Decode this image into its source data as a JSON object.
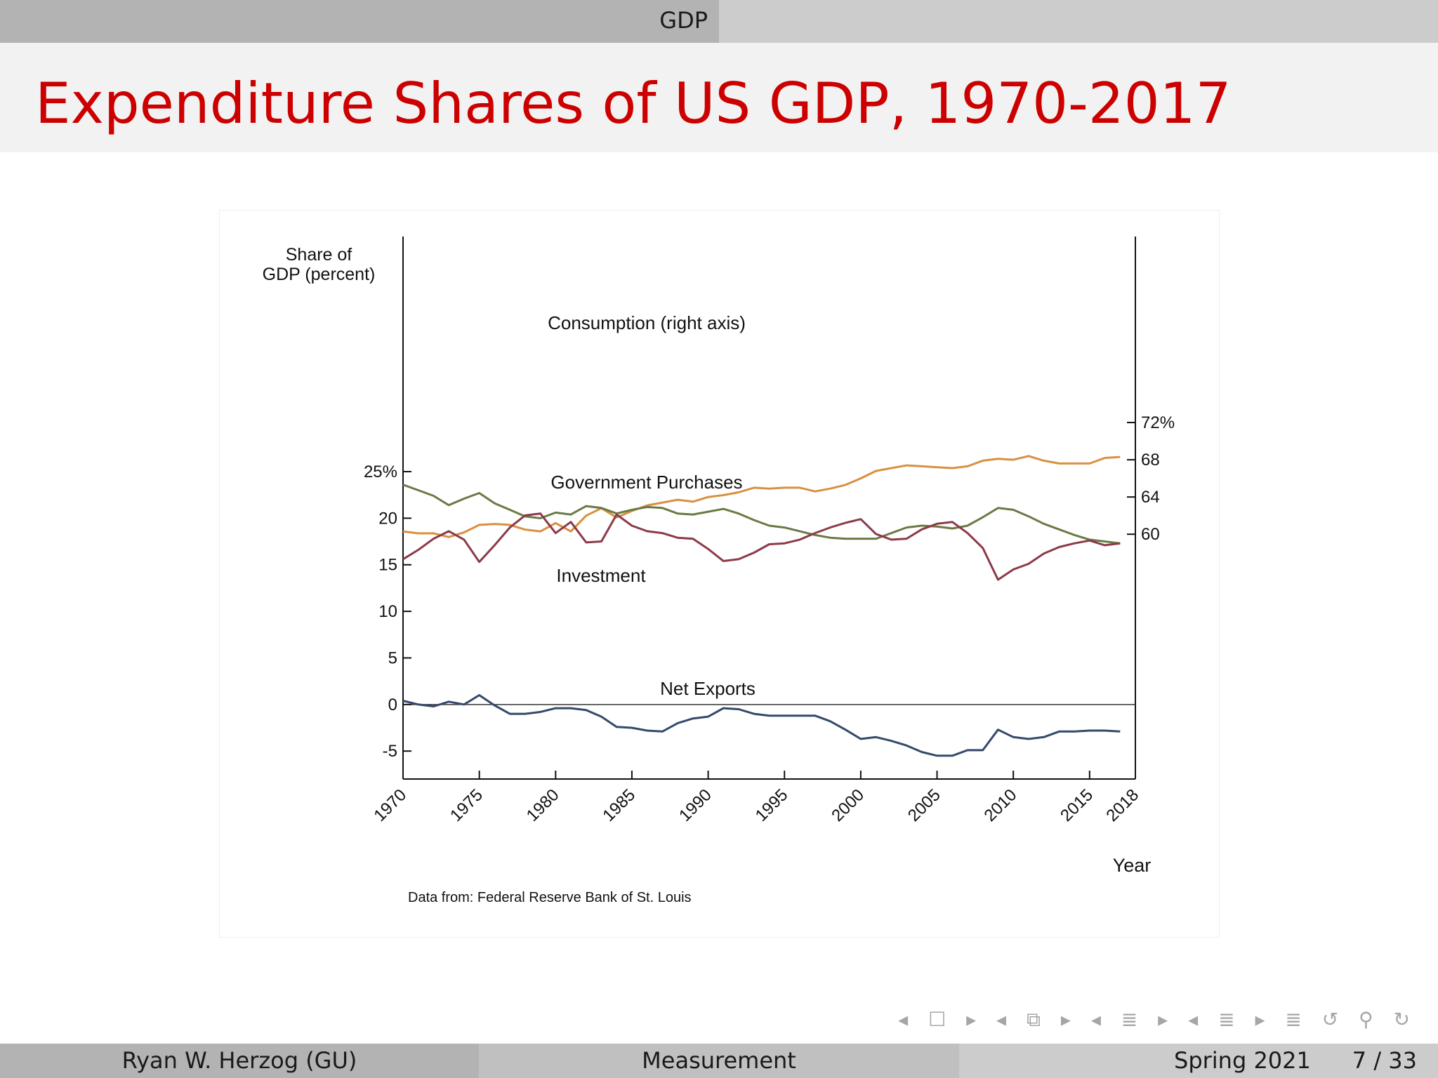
{
  "header": {
    "section": "GDP"
  },
  "slide": {
    "title": "Expenditure Shares of US GDP, 1970-2017"
  },
  "colors": {
    "title": "#cc0000",
    "consumption": "#d99040",
    "government": "#6a7a44",
    "investment": "#8c3a48",
    "net_exports": "#34496b"
  },
  "footer": {
    "author": "Ryan W. Herzog  (GU)",
    "topic": "Measurement",
    "date": "Spring 2021",
    "page": "7 / 33"
  },
  "nav": {
    "symbols": "◂ ☐ ▸ ◂ ⧉ ▸ ◂ ≣ ▸ ◂ ≣ ▸ ≣ ↺ ⚲ ↻"
  },
  "chart_data": {
    "type": "line",
    "ylabel": "Share of\nGDP (percent)",
    "xlabel": "Year",
    "source": "Data from: Federal Reserve Bank of St. Louis",
    "xlim": [
      1970,
      2018
    ],
    "x_ticks": [
      "1970",
      "1975",
      "1980",
      "1985",
      "1990",
      "1995",
      "2000",
      "2005",
      "2010",
      "2015",
      "2018"
    ],
    "left_axis": {
      "range": [
        -8,
        25
      ],
      "ticks": [
        "25%",
        "20",
        "15",
        "10",
        "5",
        "0",
        "-5"
      ],
      "tick_values": [
        25,
        20,
        15,
        10,
        5,
        0,
        -5
      ]
    },
    "right_axis": {
      "range": [
        57,
        76
      ],
      "ticks": [
        "72%",
        "68",
        "64",
        "60"
      ],
      "tick_values": [
        72,
        68,
        64,
        60
      ]
    },
    "annotations": {
      "consumption": "Consumption (right axis)",
      "government": "Government Purchases",
      "investment": "Investment",
      "net_exports": "Net Exports"
    },
    "x": [
      1970,
      1971,
      1972,
      1973,
      1974,
      1975,
      1976,
      1977,
      1978,
      1979,
      1980,
      1981,
      1982,
      1983,
      1984,
      1985,
      1986,
      1987,
      1988,
      1989,
      1990,
      1991,
      1992,
      1993,
      1994,
      1995,
      1996,
      1997,
      1998,
      1999,
      2000,
      2001,
      2002,
      2003,
      2004,
      2005,
      2006,
      2007,
      2008,
      2009,
      2010,
      2011,
      2012,
      2013,
      2014,
      2015,
      2016,
      2017
    ],
    "series": [
      {
        "name": "Consumption (right axis)",
        "axis": "right",
        "values": [
          60.3,
          60.1,
          60.1,
          59.7,
          60.2,
          61.0,
          61.1,
          61.0,
          60.5,
          60.3,
          61.2,
          60.3,
          62.0,
          62.8,
          61.8,
          62.5,
          63.1,
          63.4,
          63.7,
          63.5,
          64.0,
          64.2,
          64.5,
          65.0,
          64.9,
          65.0,
          65.0,
          64.6,
          64.9,
          65.3,
          66.0,
          66.8,
          67.1,
          67.4,
          67.3,
          67.2,
          67.1,
          67.3,
          67.9,
          68.1,
          68.0,
          68.4,
          67.9,
          67.6,
          67.6,
          67.6,
          68.2,
          68.3
        ]
      },
      {
        "name": "Government Purchases",
        "axis": "left",
        "values": [
          23.6,
          23.0,
          22.4,
          21.4,
          22.1,
          22.7,
          21.6,
          20.9,
          20.2,
          20.0,
          20.6,
          20.4,
          21.3,
          21.1,
          20.5,
          20.9,
          21.2,
          21.1,
          20.5,
          20.4,
          20.7,
          21.0,
          20.5,
          19.8,
          19.2,
          19.0,
          18.6,
          18.2,
          17.9,
          17.8,
          17.8,
          17.8,
          18.4,
          19.0,
          19.2,
          19.1,
          18.9,
          19.2,
          20.1,
          21.1,
          20.9,
          20.2,
          19.4,
          18.8,
          18.2,
          17.7,
          17.5,
          17.3
        ]
      },
      {
        "name": "Investment",
        "axis": "left",
        "values": [
          15.6,
          16.6,
          17.8,
          18.6,
          17.7,
          15.3,
          17.1,
          19.0,
          20.3,
          20.5,
          18.4,
          19.6,
          17.4,
          17.5,
          20.4,
          19.2,
          18.6,
          18.4,
          17.9,
          17.8,
          16.7,
          15.4,
          15.6,
          16.3,
          17.2,
          17.3,
          17.7,
          18.4,
          19.0,
          19.5,
          19.9,
          18.3,
          17.7,
          17.8,
          18.8,
          19.4,
          19.6,
          18.4,
          16.8,
          13.4,
          14.5,
          15.1,
          16.2,
          16.9,
          17.3,
          17.6,
          17.1,
          17.3
        ]
      },
      {
        "name": "Net Exports",
        "axis": "left",
        "values": [
          0.4,
          0.0,
          -0.2,
          0.3,
          0.0,
          1.0,
          -0.1,
          -1.0,
          -1.0,
          -0.8,
          -0.4,
          -0.4,
          -0.6,
          -1.3,
          -2.4,
          -2.5,
          -2.8,
          -2.9,
          -2.0,
          -1.5,
          -1.3,
          -0.4,
          -0.5,
          -1.0,
          -1.2,
          -1.2,
          -1.2,
          -1.2,
          -1.8,
          -2.7,
          -3.7,
          -3.5,
          -3.9,
          -4.4,
          -5.1,
          -5.5,
          -5.5,
          -4.9,
          -4.9,
          -2.7,
          -3.5,
          -3.7,
          -3.5,
          -2.9,
          -2.9,
          -2.8,
          -2.8,
          -2.9
        ]
      }
    ]
  }
}
